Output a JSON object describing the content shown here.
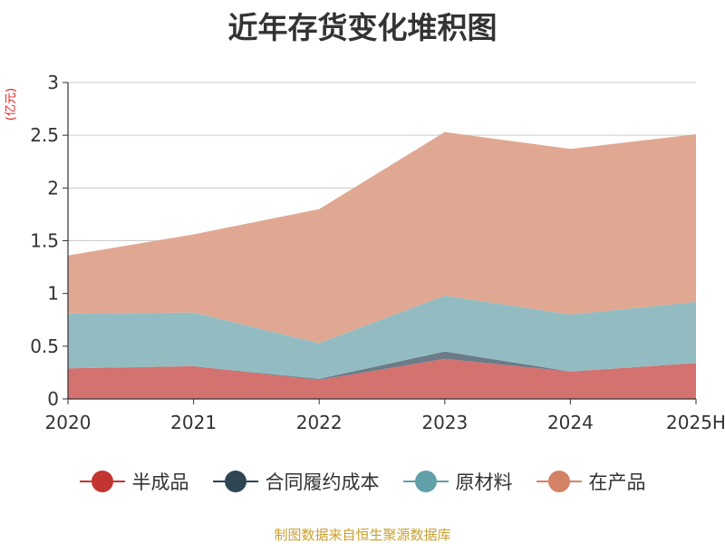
{
  "title": "近年存货变化堆积图",
  "source_note": "制图数据来自恒生聚源数据库",
  "chart_data": {
    "type": "area",
    "stacked": true,
    "title": "近年存货变化堆积图",
    "ylabel": "(亿元)",
    "ylim": [
      0,
      3
    ],
    "yticks": [
      0,
      0.5,
      1,
      1.5,
      2,
      2.5,
      3
    ],
    "ytick_labels": [
      "0",
      "0.5",
      "1",
      "1.5",
      "2",
      "2.5",
      "3"
    ],
    "categories": [
      "2020",
      "2021",
      "2022",
      "2023",
      "2024",
      "2025H"
    ],
    "grid": true,
    "legend_position": "bottom",
    "series": [
      {
        "name": "半成品",
        "color": "#c23531",
        "area_color": "#d4726f",
        "values": [
          0.29,
          0.31,
          0.18,
          0.38,
          0.26,
          0.34
        ]
      },
      {
        "name": "合同履约成本",
        "color": "#2f4554",
        "area_color": "#6b7b88",
        "values": [
          0.0,
          0.0,
          0.01,
          0.07,
          0.0,
          0.0
        ]
      },
      {
        "name": "原材料",
        "color": "#61a0a8",
        "area_color": "#93bcc2",
        "values": [
          0.52,
          0.51,
          0.34,
          0.53,
          0.54,
          0.58
        ]
      },
      {
        "name": "在产品",
        "color": "#d48265",
        "area_color": "#e0a892",
        "values": [
          0.55,
          0.74,
          1.27,
          1.55,
          1.57,
          1.59
        ]
      }
    ]
  }
}
